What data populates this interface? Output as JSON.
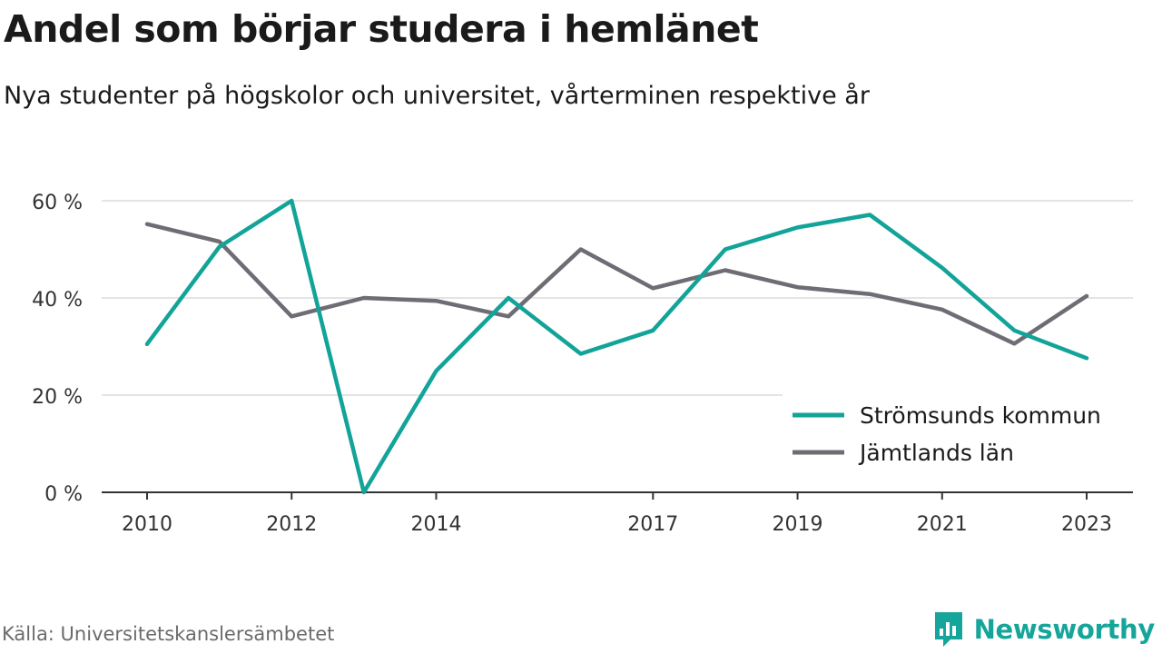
{
  "title": "Andel som börjar studera i hemlänet",
  "subtitle": "Nya studenter på högskolor och universitet, vårterminen respektive år",
  "source": "Källa: Universitetskanslersämbetet",
  "brand": {
    "name": "Newsworthy",
    "icon": "bar-chart-bubble-icon",
    "color": "#16a59b"
  },
  "chart_data": {
    "type": "line",
    "x": [
      2010,
      2011,
      2012,
      2013,
      2014,
      2015,
      2016,
      2017,
      2018,
      2019,
      2020,
      2021,
      2022,
      2023
    ],
    "x_tick_labels": [
      "2010",
      "2012",
      "2014",
      "2017",
      "2019",
      "2021",
      "2023"
    ],
    "y_ticks": [
      0,
      20,
      40,
      60
    ],
    "y_tick_labels": [
      "0 %",
      "20 %",
      "40 %",
      "60 %"
    ],
    "ylim": [
      0,
      60
    ],
    "grid": true,
    "legend_position": "lower-right",
    "series": [
      {
        "name": "Strömsunds kommun",
        "color": "#12a399",
        "values": [
          30.5,
          50.5,
          60.0,
          0.0,
          25.0,
          40.0,
          28.5,
          33.3,
          50.0,
          54.5,
          57.1,
          46.2,
          33.3,
          27.6
        ]
      },
      {
        "name": "Jämtlands län",
        "color": "#6e6d75",
        "values": [
          55.2,
          51.6,
          36.2,
          40.0,
          39.4,
          36.2,
          50.0,
          42.0,
          45.7,
          42.2,
          40.8,
          37.6,
          30.6,
          40.4
        ]
      }
    ]
  }
}
